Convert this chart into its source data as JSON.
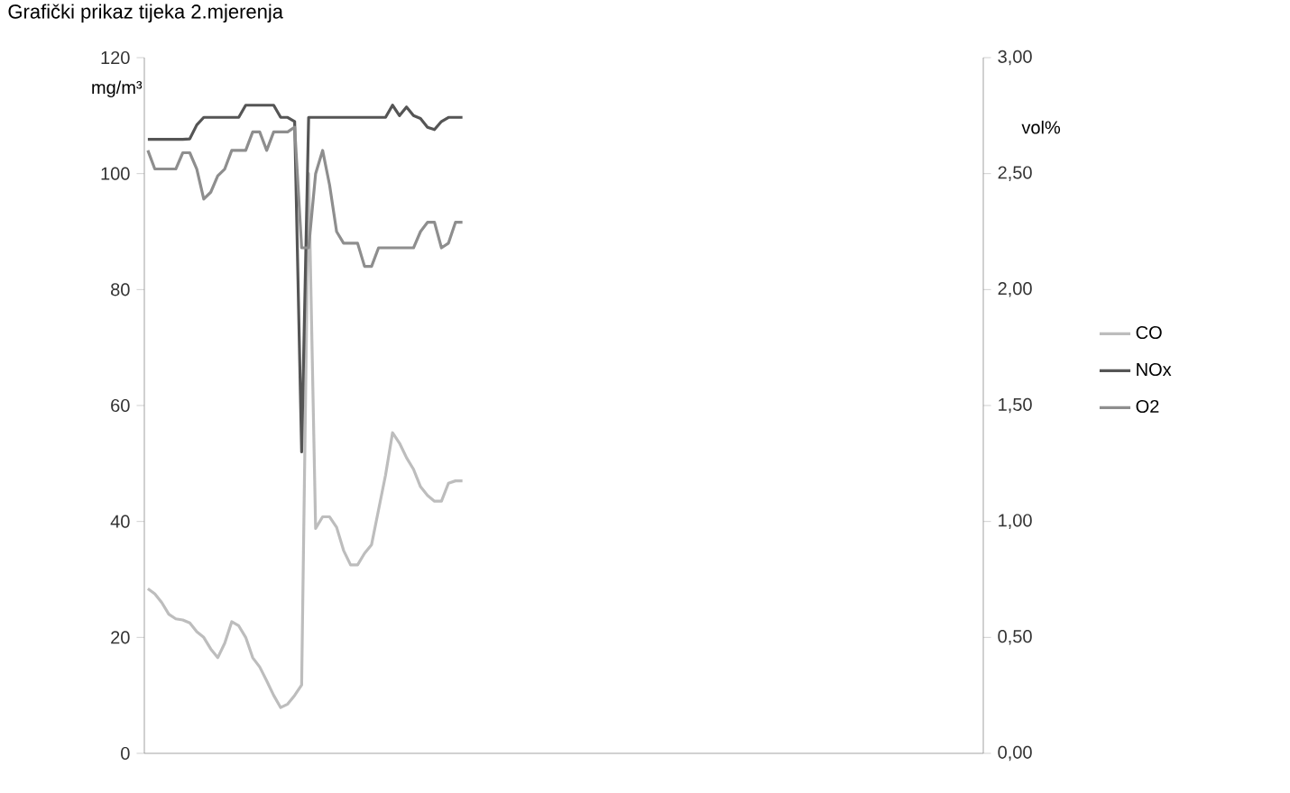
{
  "chart_data": {
    "type": "line",
    "title": "Grafički prikaz tijeka 2.mjerenja",
    "ylabel": "mg/m³",
    "y2label": "vol%",
    "categories": [
      null,
      null,
      null,
      null,
      null,
      null,
      null,
      null,
      null,
      null,
      null,
      null,
      null,
      null,
      null,
      null,
      null,
      null,
      null,
      null,
      null,
      null,
      null,
      null,
      null,
      null,
      null,
      null,
      null,
      null,
      null,
      null,
      null,
      null,
      null,
      null,
      null,
      null,
      null,
      null,
      null,
      null,
      null,
      null,
      null,
      null,
      null,
      null,
      null,
      null,
      null,
      null,
      null,
      null,
      null,
      null,
      null,
      null,
      null,
      null,
      null,
      null,
      null,
      null,
      null,
      null,
      null,
      null,
      null,
      null,
      null,
      null,
      null,
      null,
      null,
      null,
      null,
      null,
      null,
      null,
      null,
      null,
      null,
      null,
      null,
      null,
      null,
      null,
      null,
      null,
      null,
      null,
      null,
      null,
      null,
      null,
      null,
      null,
      null,
      null,
      null,
      null,
      null,
      null,
      null,
      null,
      null,
      null,
      null,
      null,
      null,
      null,
      null,
      null,
      null,
      null,
      null,
      null,
      null,
      null
    ],
    "series": [
      {
        "name": "CO",
        "color": "#bdbdbd",
        "values": [
          28.4,
          27.5,
          26,
          24,
          23.2,
          23,
          22.5,
          21,
          20,
          18,
          16.5,
          19,
          22.7,
          22,
          20,
          16.5,
          14.9,
          12.5,
          10,
          7.9,
          8.5,
          10,
          11.8,
          100,
          38.8,
          40.8,
          40.8,
          39,
          35,
          32.5,
          32.5,
          34.5,
          36,
          42,
          48,
          55.3,
          53.5,
          51,
          49,
          46,
          44.5,
          43.5,
          43.5,
          46.6,
          47,
          47,
          null,
          null,
          null,
          null,
          null,
          null,
          null,
          null,
          null,
          null,
          null,
          null,
          null,
          null,
          null,
          null,
          null,
          null,
          null,
          null,
          null,
          null,
          null,
          null,
          null,
          null,
          null,
          null,
          null,
          null,
          null,
          null,
          null,
          null,
          null,
          null,
          null,
          null,
          null,
          null,
          null,
          null,
          null,
          null,
          null,
          null,
          null,
          null,
          null,
          null,
          null,
          null,
          null,
          null,
          null,
          null,
          null,
          null,
          null,
          null,
          null,
          null,
          null,
          null,
          null,
          null,
          null,
          null,
          null,
          null,
          null,
          null,
          null,
          null
        ]
      },
      {
        "name": "NOx",
        "color": "#555555",
        "values": [
          105.9,
          105.9,
          105.9,
          105.9,
          105.9,
          105.9,
          106,
          108.4,
          109.7,
          109.7,
          109.7,
          109.7,
          109.7,
          109.7,
          111.8,
          111.8,
          111.8,
          111.8,
          111.8,
          109.7,
          109.7,
          109,
          52,
          109.7,
          109.7,
          109.7,
          109.7,
          109.7,
          109.7,
          109.7,
          109.7,
          109.7,
          109.7,
          109.7,
          109.7,
          111.8,
          110,
          111.5,
          110,
          109.5,
          108,
          107.6,
          109,
          109.7,
          109.7,
          109.7,
          null,
          null,
          null,
          null,
          null,
          null,
          null,
          null,
          null,
          null,
          null,
          null,
          null,
          null,
          null,
          null,
          null,
          null,
          null,
          null,
          null,
          null,
          null,
          null,
          null,
          null,
          null,
          null,
          null,
          null,
          null,
          null,
          null,
          null,
          null,
          null,
          null,
          null,
          null,
          null,
          null,
          null,
          null,
          null,
          null,
          null,
          null,
          null,
          null,
          null,
          null,
          null,
          null,
          null,
          null,
          null,
          null,
          null,
          null,
          null,
          null,
          null,
          null,
          null,
          null,
          null,
          null,
          null,
          null,
          null,
          null,
          null,
          null,
          null
        ]
      },
      {
        "name": "O2",
        "color": "#8e8e8e",
        "axis": "y2",
        "values": [
          2.6,
          2.52,
          2.52,
          2.52,
          2.52,
          2.59,
          2.59,
          2.52,
          2.39,
          2.42,
          2.49,
          2.52,
          2.6,
          2.6,
          2.6,
          2.68,
          2.68,
          2.6,
          2.68,
          2.68,
          2.68,
          2.7,
          2.18,
          2.18,
          2.5,
          2.6,
          2.45,
          2.25,
          2.2,
          2.2,
          2.2,
          2.1,
          2.1,
          2.18,
          2.18,
          2.18,
          2.18,
          2.18,
          2.18,
          2.25,
          2.29,
          2.29,
          2.18,
          2.2,
          2.29,
          2.29,
          null,
          null,
          null,
          null,
          null,
          null,
          null,
          null,
          null,
          null,
          null,
          null,
          null,
          null,
          null,
          null,
          null,
          null,
          null,
          null,
          null,
          null,
          null,
          null,
          null,
          null,
          null,
          null,
          null,
          null,
          null,
          null,
          null,
          null,
          null,
          null,
          null,
          null,
          null,
          null,
          null,
          null,
          null,
          null,
          null,
          null,
          null,
          null,
          null,
          null,
          null,
          null,
          null,
          null,
          null,
          null,
          null,
          null,
          null,
          null,
          null,
          null,
          null,
          null,
          null,
          null,
          null,
          null,
          null,
          null,
          null,
          null,
          null,
          null
        ]
      }
    ],
    "ylim": [
      0,
      120
    ],
    "yticks": [
      0,
      20,
      40,
      60,
      80,
      100,
      120
    ],
    "y2lim": [
      0,
      3
    ],
    "y2ticks": [
      {
        "value": 0,
        "label": "0,00"
      },
      {
        "value": 0.5,
        "label": "0,50"
      },
      {
        "value": 1,
        "label": "1,00"
      },
      {
        "value": 1.5,
        "label": "1,50"
      },
      {
        "value": 2,
        "label": "2,00"
      },
      {
        "value": 2.5,
        "label": "2,50"
      },
      {
        "value": 3,
        "label": "3,00"
      }
    ],
    "legend": "right"
  }
}
